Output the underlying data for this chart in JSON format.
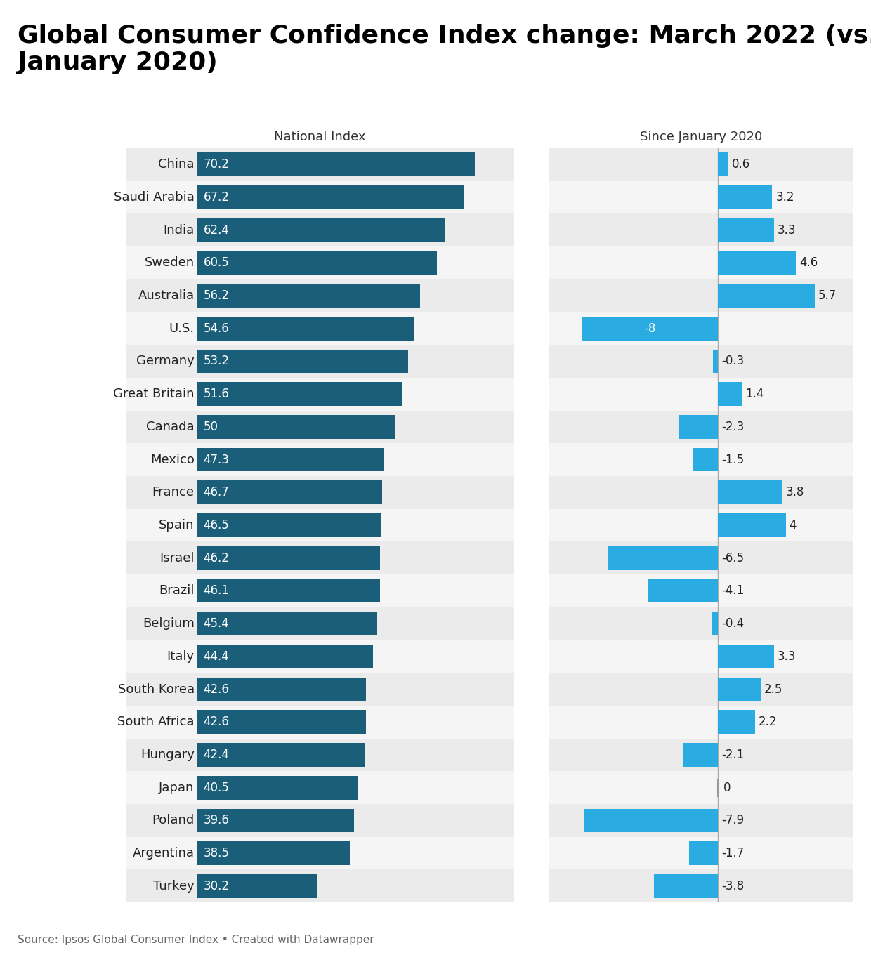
{
  "title": "Global Consumer Confidence Index change: March 2022 (vs.\nJanuary 2020)",
  "subtitle_left": "National Index",
  "subtitle_right": "Since January 2020",
  "source": "Source: Ipsos Global Consumer Index • Created with Datawrapper",
  "countries": [
    "China",
    "Saudi Arabia",
    "India",
    "Sweden",
    "Australia",
    "U.S.",
    "Germany",
    "Great Britain",
    "Canada",
    "Mexico",
    "France",
    "Spain",
    "Israel",
    "Brazil",
    "Belgium",
    "Italy",
    "South Korea",
    "South Africa",
    "Hungary",
    "Japan",
    "Poland",
    "Argentina",
    "Turkey"
  ],
  "national_index": [
    70.2,
    67.2,
    62.4,
    60.5,
    56.2,
    54.6,
    53.2,
    51.6,
    50.0,
    47.3,
    46.7,
    46.5,
    46.2,
    46.1,
    45.4,
    44.4,
    42.6,
    42.6,
    42.4,
    40.5,
    39.6,
    38.5,
    30.2
  ],
  "since_jan2020": [
    0.6,
    3.2,
    3.3,
    4.6,
    5.7,
    -8.0,
    -0.3,
    1.4,
    -2.3,
    -1.5,
    3.8,
    4.0,
    -6.5,
    -4.1,
    -0.4,
    3.3,
    2.5,
    2.2,
    -2.1,
    0.0,
    -7.9,
    -1.7,
    -3.8
  ],
  "bar_color_dark": "#1a5e7a",
  "bar_color_light": "#2aace2",
  "bg_even": "#ebebeb",
  "bg_odd": "#f5f5f5",
  "text_color": "#222222",
  "title_fontsize": 26,
  "sub_fontsize": 13,
  "country_fontsize": 13,
  "bar_label_fontsize": 12,
  "source_fontsize": 11
}
